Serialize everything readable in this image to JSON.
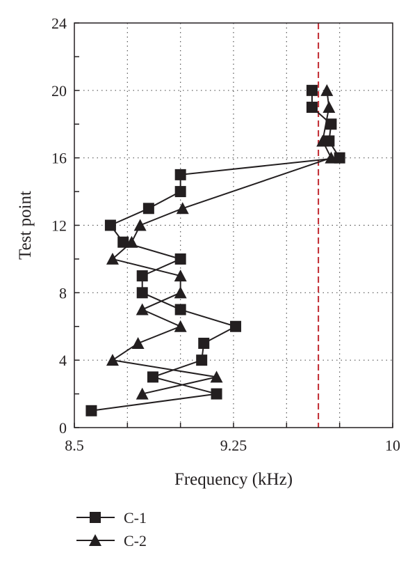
{
  "chart_data": {
    "type": "line",
    "title": "",
    "xlabel": "Frequency (kHz)",
    "ylabel": "Test point",
    "xlim": [
      8.5,
      10
    ],
    "ylim": [
      0,
      24
    ],
    "xticks": [
      8.5,
      9.25,
      10
    ],
    "xtick_labels": [
      "8.5",
      "9.25",
      "10"
    ],
    "yticks": [
      0,
      4,
      8,
      12,
      16,
      20,
      24
    ],
    "ytick_labels": [
      "0",
      "4",
      "8",
      "12",
      "16",
      "20",
      "24"
    ],
    "grid": "dotted",
    "reference_line": {
      "axis": "x",
      "value": 9.65,
      "color": "#c0262d",
      "style": "dashed"
    },
    "legend_position": "bottom-left",
    "series": [
      {
        "name": "C-1",
        "marker": "square",
        "points": [
          [
            8.58,
            1
          ],
          [
            9.17,
            2
          ],
          [
            8.87,
            3
          ],
          [
            9.1,
            4
          ],
          [
            9.11,
            5
          ],
          [
            9.26,
            6
          ],
          [
            9.0,
            7
          ],
          [
            8.82,
            8
          ],
          [
            8.82,
            9
          ],
          [
            9.0,
            10
          ],
          [
            8.73,
            11
          ],
          [
            8.67,
            12
          ],
          [
            8.85,
            13
          ],
          [
            9.0,
            14
          ],
          [
            9.0,
            15
          ],
          [
            9.75,
            16
          ],
          [
            9.7,
            17
          ],
          [
            9.71,
            18
          ],
          [
            9.62,
            19
          ],
          [
            9.62,
            20
          ]
        ]
      },
      {
        "name": "C-2",
        "marker": "triangle",
        "points": [
          [
            8.82,
            2
          ],
          [
            9.17,
            3
          ],
          [
            8.68,
            4
          ],
          [
            8.8,
            5
          ],
          [
            9.0,
            6
          ],
          [
            8.82,
            7
          ],
          [
            9.0,
            8
          ],
          [
            9.0,
            9
          ],
          [
            8.68,
            10
          ],
          [
            8.77,
            11
          ],
          [
            8.81,
            12
          ],
          [
            9.01,
            13
          ],
          [
            9.71,
            16
          ],
          [
            9.67,
            17
          ],
          [
            9.7,
            19
          ],
          [
            9.69,
            20
          ]
        ]
      }
    ]
  }
}
